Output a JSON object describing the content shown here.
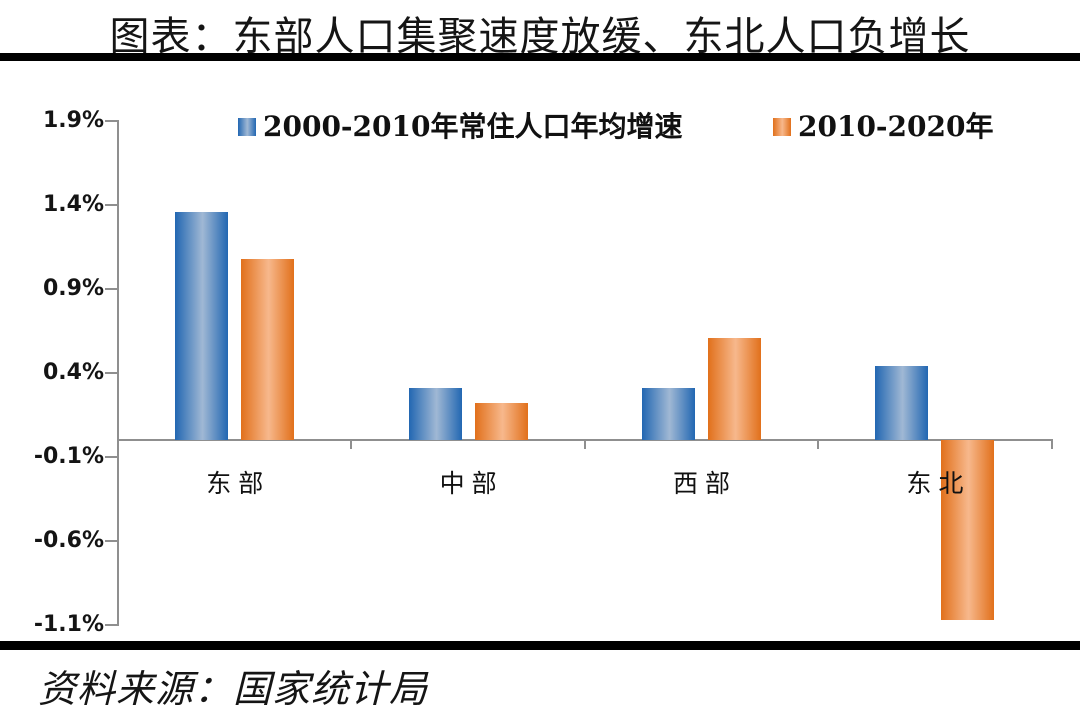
{
  "title": "图表：东部人口集聚速度放缓、东北人口负增长",
  "source_note": "资料来源：国家统计局",
  "colors": {
    "series1_edge": "#2267B2",
    "series1_mid": "#A0B8D4",
    "series2_edge": "#E1701B",
    "series2_mid": "#F7B88C",
    "axis": "#8f8f8f",
    "rule": "#000000"
  },
  "chart_data": {
    "type": "bar",
    "title": "图表：东部人口集聚速度放缓、东北人口负增长",
    "categories": [
      "东部",
      "中部",
      "西部",
      "东北"
    ],
    "series": [
      {
        "name": "2000-2010年常住人口年均增速",
        "values": [
          1.36,
          0.31,
          0.31,
          0.44
        ],
        "color_edge": "#2267B2",
        "color_mid": "#A0B8D4"
      },
      {
        "name": "2010-2020年",
        "values": [
          1.08,
          0.22,
          0.61,
          -1.07
        ],
        "color_edge": "#E1701B",
        "color_mid": "#F7B88C"
      }
    ],
    "unit": "%",
    "ylim": [
      -1.1,
      1.9
    ],
    "yticks": [
      1.9,
      1.4,
      0.9,
      0.4,
      -0.1,
      -0.6,
      -1.1
    ],
    "ytick_labels": [
      "1.9%",
      "1.4%",
      "0.9%",
      "0.4%",
      "-0.1%",
      "-0.6%",
      "-1.1%"
    ],
    "baseline": 0,
    "grid": false,
    "legend_position": "top",
    "source": "资料来源：国家统计局"
  }
}
